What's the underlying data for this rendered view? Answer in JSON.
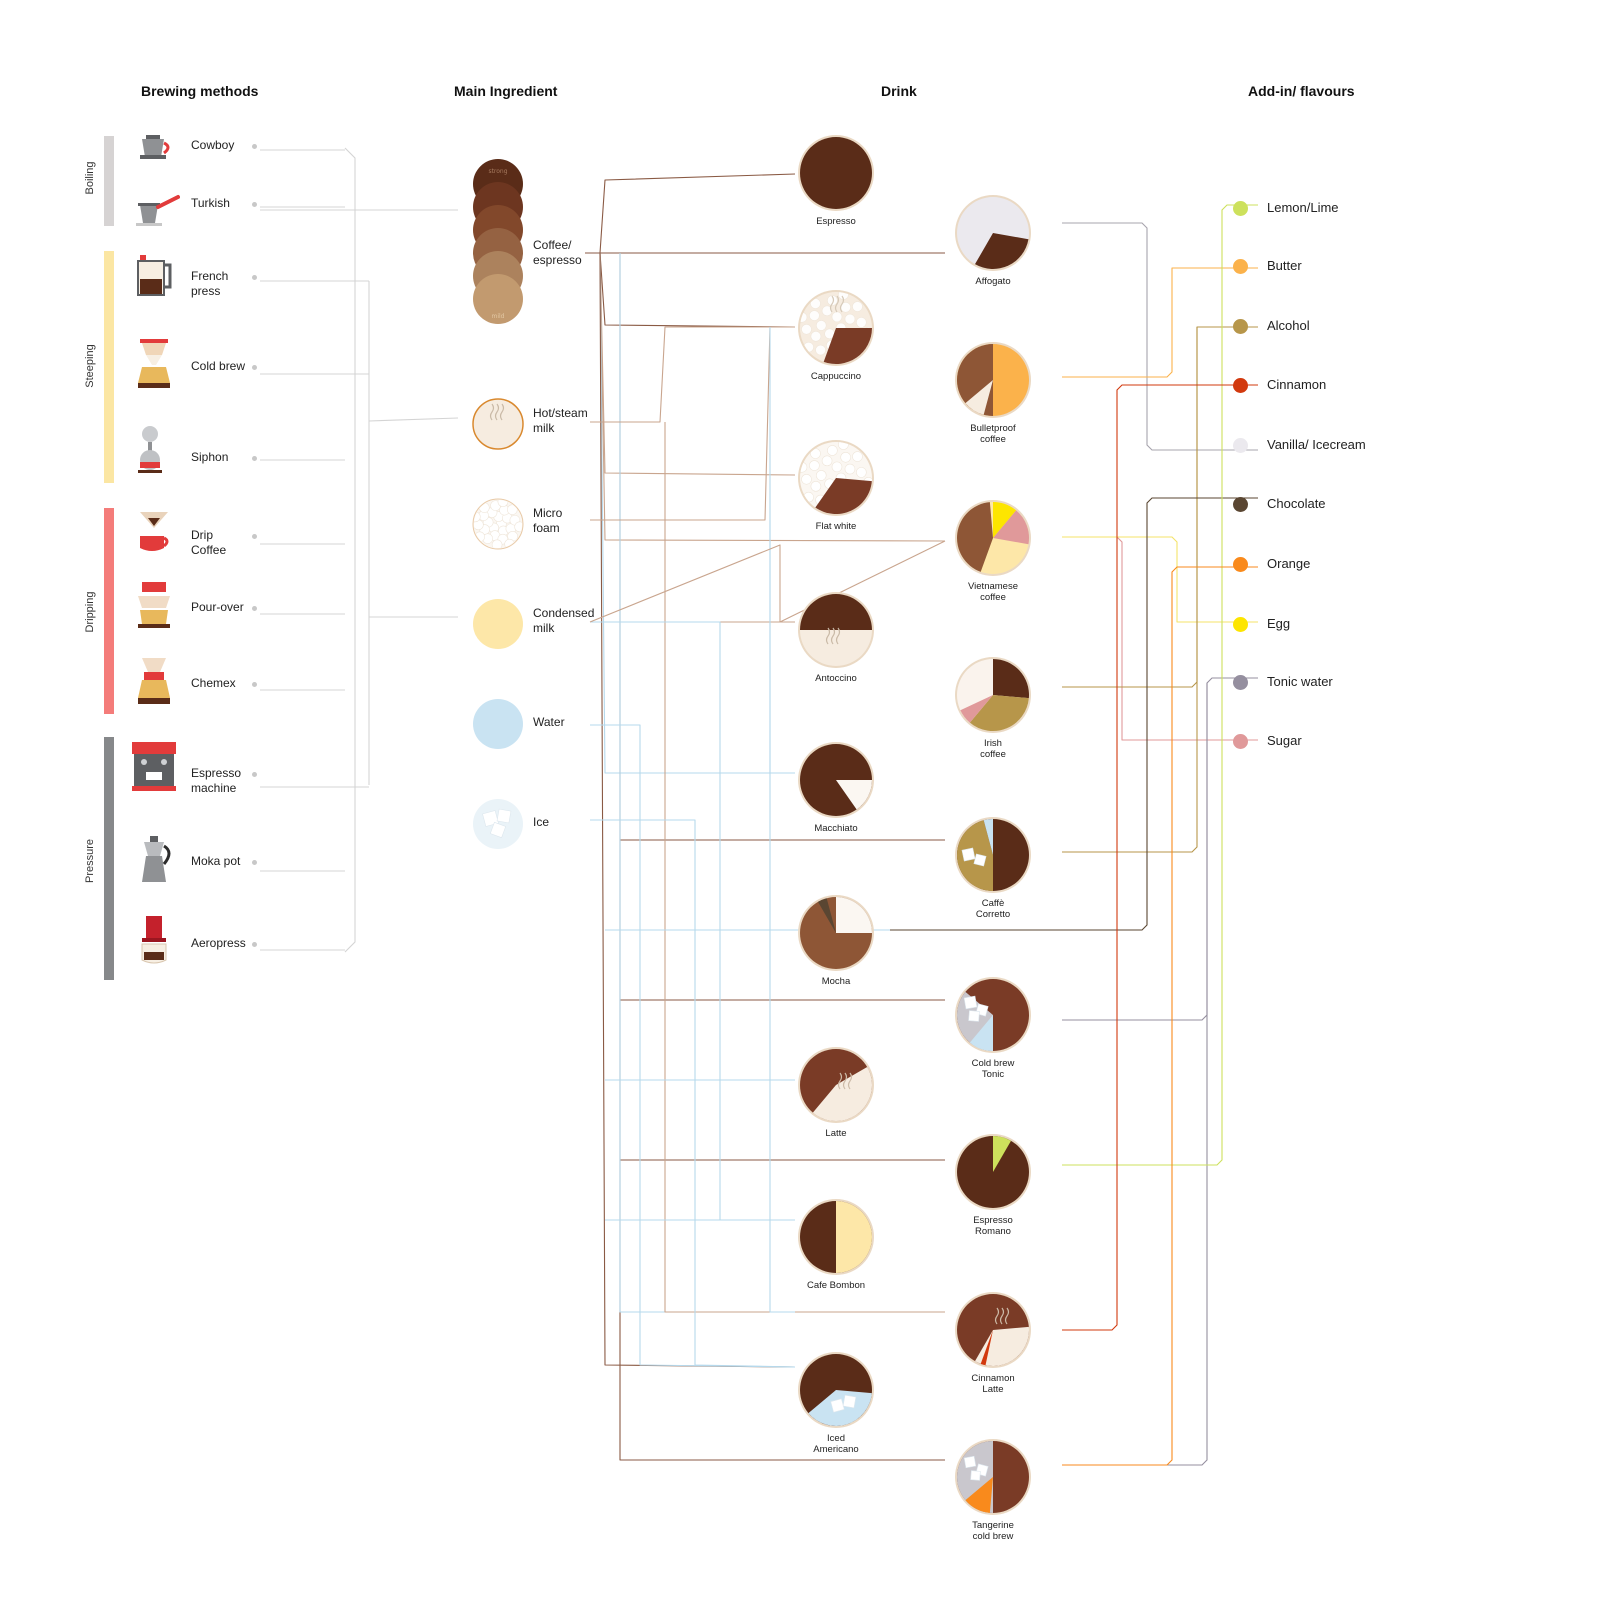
{
  "headers": {
    "brewing": "Brewing methods",
    "ingredient": "Main Ingredient",
    "drink": "Drink",
    "addins": "Add-in/ flavours"
  },
  "groups": [
    {
      "name": "Boiling",
      "color": "#d6d3d3"
    },
    {
      "name": "Steeping",
      "color": "#fbe6a3"
    },
    {
      "name": "Dripping",
      "color": "#f47c7a"
    },
    {
      "name": "Pressure",
      "color": "#86888a"
    }
  ],
  "methods": [
    {
      "label": "Cowboy",
      "icon": "cowboy-pot-icon"
    },
    {
      "label": "Turkish",
      "icon": "turkish-cezve-icon"
    },
    {
      "label": "French\npress",
      "icon": "french-press-icon"
    },
    {
      "label": "Cold brew",
      "icon": "cold-brew-tower-icon"
    },
    {
      "label": "Siphon",
      "icon": "siphon-icon"
    },
    {
      "label": "Drip\nCoffee",
      "icon": "drip-coffee-icon"
    },
    {
      "label": "Pour-over",
      "icon": "pour-over-icon"
    },
    {
      "label": "Chemex",
      "icon": "chemex-icon"
    },
    {
      "label": "Espresso\nmachine",
      "icon": "espresso-machine-icon"
    },
    {
      "label": "Moka pot",
      "icon": "moka-pot-icon"
    },
    {
      "label": "Aeropress",
      "icon": "aeropress-icon"
    }
  ],
  "ingredients": [
    {
      "label": "Coffee/\nespresso",
      "icon": "coffee-roast-stack-icon"
    },
    {
      "label": "Hot/steam\nmilk",
      "icon": "steam-milk-icon",
      "color": "#f6ece0"
    },
    {
      "label": "Micro\nfoam",
      "icon": "micro-foam-icon",
      "color": "#fbf7f2"
    },
    {
      "label": "Condensed\nmilk",
      "icon": "condensed-milk-icon",
      "color": "#fde7a8"
    },
    {
      "label": "Water",
      "icon": "water-icon",
      "color": "#c9e3f2"
    },
    {
      "label": "Ice",
      "icon": "ice-icon",
      "color": "#eaf3f8"
    }
  ],
  "coffee_stack": {
    "top_text": "strong",
    "bottom_text": "mild",
    "colors": [
      "#5a2c18",
      "#6d3620",
      "#82482b",
      "#956242",
      "#ac825d",
      "#c29a6f"
    ]
  },
  "drinks": [
    {
      "label": "Espresso",
      "icon": "espresso-cup-icon"
    },
    {
      "label": "Affogato",
      "icon": "affogato-icon"
    },
    {
      "label": "Cappuccino",
      "icon": "cappuccino-icon"
    },
    {
      "label": "Bulletproof\ncoffee",
      "icon": "bulletproof-coffee-icon"
    },
    {
      "label": "Flat white",
      "icon": "flat-white-icon"
    },
    {
      "label": "Vietnamese\ncoffee",
      "icon": "vietnamese-coffee-icon"
    },
    {
      "label": "Antoccino",
      "icon": "antoccino-icon"
    },
    {
      "label": "Irish\ncoffee",
      "icon": "irish-coffee-icon"
    },
    {
      "label": "Macchiato",
      "icon": "macchiato-icon"
    },
    {
      "label": "Caffè\nCorretto",
      "icon": "caffe-corretto-icon"
    },
    {
      "label": "Mocha",
      "icon": "mocha-icon"
    },
    {
      "label": "Cold brew\nTonic",
      "icon": "cold-brew-tonic-icon"
    },
    {
      "label": "Latte",
      "icon": "latte-icon"
    },
    {
      "label": "Espresso\nRomano",
      "icon": "espresso-romano-icon"
    },
    {
      "label": "Cafe Bombon",
      "icon": "cafe-bombon-icon"
    },
    {
      "label": "Cinnamon\nLatte",
      "icon": "cinnamon-latte-icon"
    },
    {
      "label": "Iced\nAmericano",
      "icon": "iced-americano-icon"
    },
    {
      "label": "Tangerine\ncold brew",
      "icon": "tangerine-cold-brew-icon"
    }
  ],
  "addins": [
    {
      "label": "Lemon/Lime",
      "color": "#cde15c"
    },
    {
      "label": "Butter",
      "color": "#fbb24b"
    },
    {
      "label": "Alcohol",
      "color": "#b7964a"
    },
    {
      "label": "Cinnamon",
      "color": "#d2390e"
    },
    {
      "label": "Vanilla/ Icecream",
      "color": "#ebe9ee"
    },
    {
      "label": "Chocolate",
      "color": "#5a4632"
    },
    {
      "label": "Orange",
      "color": "#f98a1c"
    },
    {
      "label": "Egg",
      "color": "#fde500"
    },
    {
      "label": "Tonic water",
      "color": "#958f9f"
    },
    {
      "label": "Sugar",
      "color": "#e0999a"
    }
  ],
  "palette": {
    "coffee": "#5a2c18",
    "coffee_mid": "#7a3b26",
    "coffee_light": "#8e5636",
    "milk": "#f6ece0",
    "foam": "#fbf7f2",
    "condensed": "#fde7a8",
    "water": "#c9e3f2",
    "ice_grey": "#c9c7cd",
    "ring": "#ead9c4"
  }
}
